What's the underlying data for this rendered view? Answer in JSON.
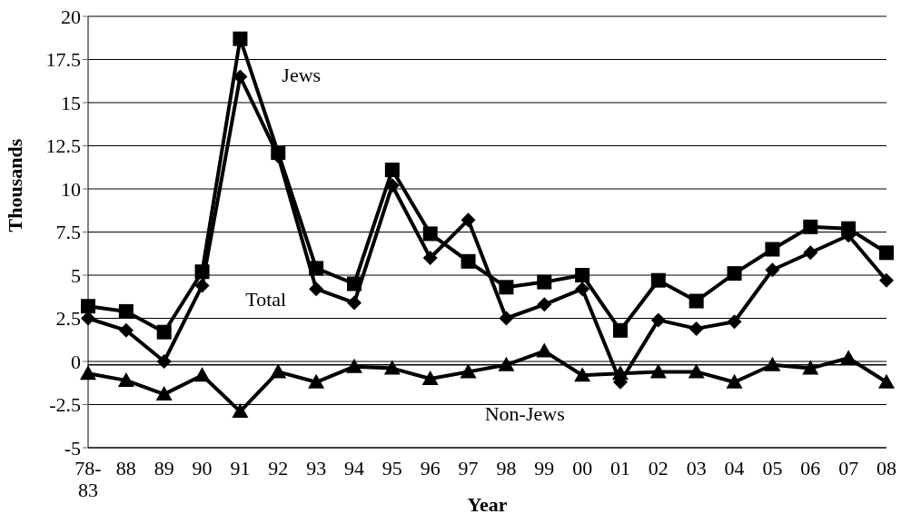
{
  "chart_data": {
    "type": "line",
    "xlabel": "Year",
    "ylabel": "Thousands",
    "categories": [
      "78-83",
      "88",
      "89",
      "90",
      "91",
      "92",
      "93",
      "94",
      "95",
      "96",
      "97",
      "98",
      "99",
      "00",
      "01",
      "02",
      "03",
      "04",
      "05",
      "06",
      "07",
      "08"
    ],
    "series": [
      {
        "name": "Jews",
        "color": "#000000",
        "marker": "square",
        "values": [
          3.2,
          2.9,
          1.7,
          5.2,
          18.7,
          12.1,
          5.4,
          4.5,
          11.1,
          7.4,
          5.8,
          4.3,
          4.6,
          5.0,
          1.8,
          4.7,
          3.5,
          5.1,
          6.5,
          7.8,
          7.7,
          6.3
        ]
      },
      {
        "name": "Total",
        "color": "#000000",
        "marker": "diamond",
        "values": [
          2.5,
          1.8,
          0,
          4.4,
          16.5,
          11.9,
          4.2,
          3.4,
          10.2,
          6.0,
          8.2,
          2.5,
          3.3,
          4.2,
          -1.2,
          2.4,
          1.9,
          2.3,
          5.3,
          6.3,
          7.3,
          4.7
        ]
      },
      {
        "name": "Non-Jews",
        "color": "#000000",
        "marker": "triangle",
        "values": [
          -0.7,
          -1.1,
          -1.9,
          -0.8,
          -2.9,
          -0.6,
          -1.2,
          -0.3,
          -0.4,
          -1.0,
          -0.6,
          -0.2,
          0.6,
          -0.8,
          -0.7,
          -0.6,
          -0.6,
          -1.2,
          -0.2,
          -0.4,
          0.2,
          -1.2
        ]
      }
    ],
    "ylim": [
      -5,
      20
    ],
    "yticks": [
      -5,
      -2.5,
      0,
      2.5,
      5,
      7.5,
      10,
      12.5,
      15,
      17.5,
      20
    ],
    "ref_lines": [
      {
        "axis": "y",
        "value": -0.2,
        "color": "#000000"
      }
    ],
    "grid": "y",
    "legend": false,
    "line_style": "solid"
  }
}
